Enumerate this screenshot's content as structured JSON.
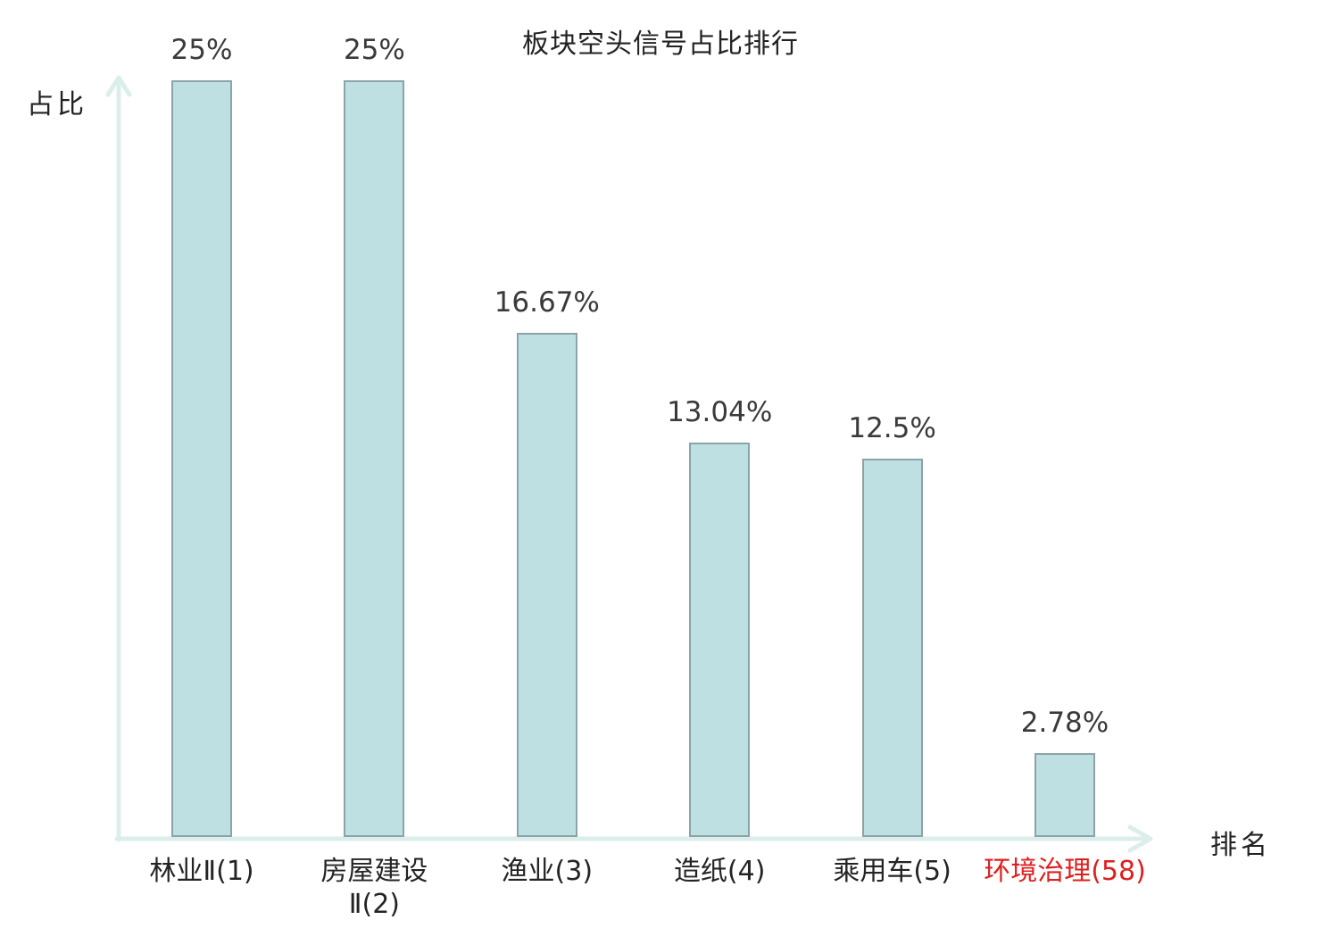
{
  "chart_data": {
    "type": "bar",
    "title": "板块空头信号占比排行",
    "xlabel": "排名",
    "ylabel": "占比",
    "categories": [
      "林业Ⅱ(1)",
      "房屋建设\nⅡ(2)",
      "渔业(3)",
      "造纸(4)",
      "乘用车(5)",
      "环境治理(58)"
    ],
    "values": [
      25,
      25,
      16.67,
      13.04,
      12.5,
      2.78
    ],
    "value_labels": [
      "25%",
      "25%",
      "16.67%",
      "13.04%",
      "12.5%",
      "2.78%"
    ],
    "highlight_index": 5,
    "ylim": [
      0,
      25
    ],
    "grid": false,
    "legend_position": "none",
    "colors": {
      "bar_fill": "#bfe0e3",
      "bar_border": "#8ca3a7",
      "axis": "#dceeeb",
      "text": "#3a3a3a",
      "category_text": "#242424",
      "highlight": "#df1f1f"
    }
  }
}
